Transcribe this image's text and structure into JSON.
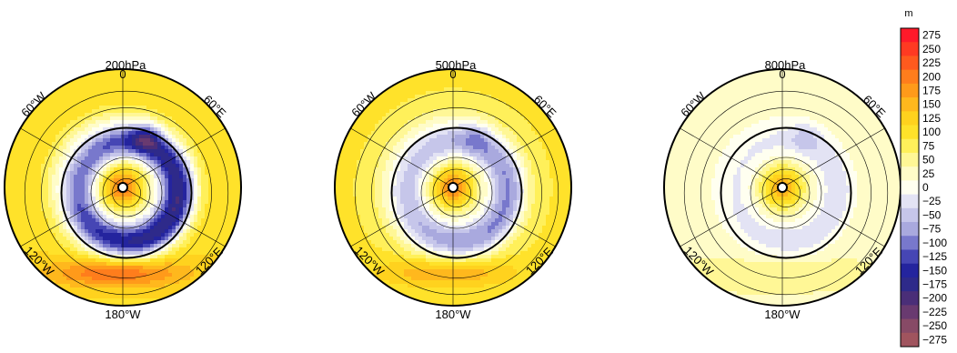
{
  "panels": [
    {
      "title": "200hPa",
      "top_label": "0",
      "lon_labels": {
        "w60": "60°W",
        "e60": "60°E",
        "w120": "120°W",
        "e120": "120°E",
        "bottom": "180°W"
      },
      "field": {
        "pole_anomaly": 200,
        "ring_anomaly": -180,
        "outer_anomaly": 110,
        "southern_ridge": 185,
        "ne_trough": -90
      }
    },
    {
      "title": "500hPa",
      "top_label": "0",
      "lon_labels": {
        "w60": "60°W",
        "e60": "60°E",
        "w120": "120°W",
        "e120": "120°E",
        "bottom": "180°W"
      },
      "field": {
        "pole_anomaly": 185,
        "ring_anomaly": -90,
        "outer_anomaly": 90,
        "southern_ridge": 130,
        "ne_trough": -40
      }
    },
    {
      "title": "800hPa",
      "top_label": "0",
      "lon_labels": {
        "w60": "60°W",
        "e60": "60°E",
        "w120": "120°W",
        "e120": "120°E",
        "bottom": "180°W"
      },
      "field": {
        "pole_anomaly": 160,
        "ring_anomaly": -30,
        "outer_anomaly": 35,
        "southern_ridge": 50,
        "ne_trough": -40
      }
    }
  ],
  "colorbar": {
    "unit": "m",
    "levels": [
      "275",
      "250",
      "225",
      "200",
      "175",
      "150",
      "125",
      "100",
      "75",
      "50",
      "25",
      "0",
      "−25",
      "−50",
      "−75",
      "−100",
      "−125",
      "−150",
      "−175",
      "−200",
      "−225",
      "−250",
      "−275"
    ],
    "colors": [
      "#ff1a2a",
      "#ff3a22",
      "#ff5a1e",
      "#ff7d1c",
      "#ff9a1a",
      "#ffb81d",
      "#ffd21e",
      "#ffe22a",
      "#fff05a",
      "#fff796",
      "#fffcc8",
      "#fffff0",
      "#e3e3f4",
      "#c6c6ea",
      "#a9a9de",
      "#7878cc",
      "#4646b4",
      "#24249e",
      "#2e2a8a",
      "#4a2e78",
      "#693a70",
      "#874a66",
      "#a0545e"
    ]
  }
}
